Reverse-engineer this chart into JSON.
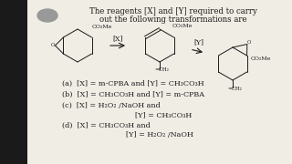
{
  "bg_color": "#c8c8c8",
  "panel_color": "#e8e8e0",
  "text_color": "#1a1a1a",
  "title_line1": "The reagents [X] and [Y] required to carry",
  "title_line2": "out the following transformations are",
  "option_a": "(a)  [X] = m-CPBA and [Y] = CH₃CO₃H",
  "option_b": "(b)  [X] = CH₃CO₃H and [Y] = m-CPBA",
  "option_c1": "(c)  [X] = H₂O₂ /NaOH and",
  "option_c2": "[Y] = CH₃CO₃H",
  "option_d1": "(d)  [X] = CH₃CO₃H and",
  "option_d2": "[Y] = H₂O₂ /NaOH",
  "fontsize_title": 6.2,
  "fontsize_options": 5.8,
  "fontsize_struct": 4.5
}
